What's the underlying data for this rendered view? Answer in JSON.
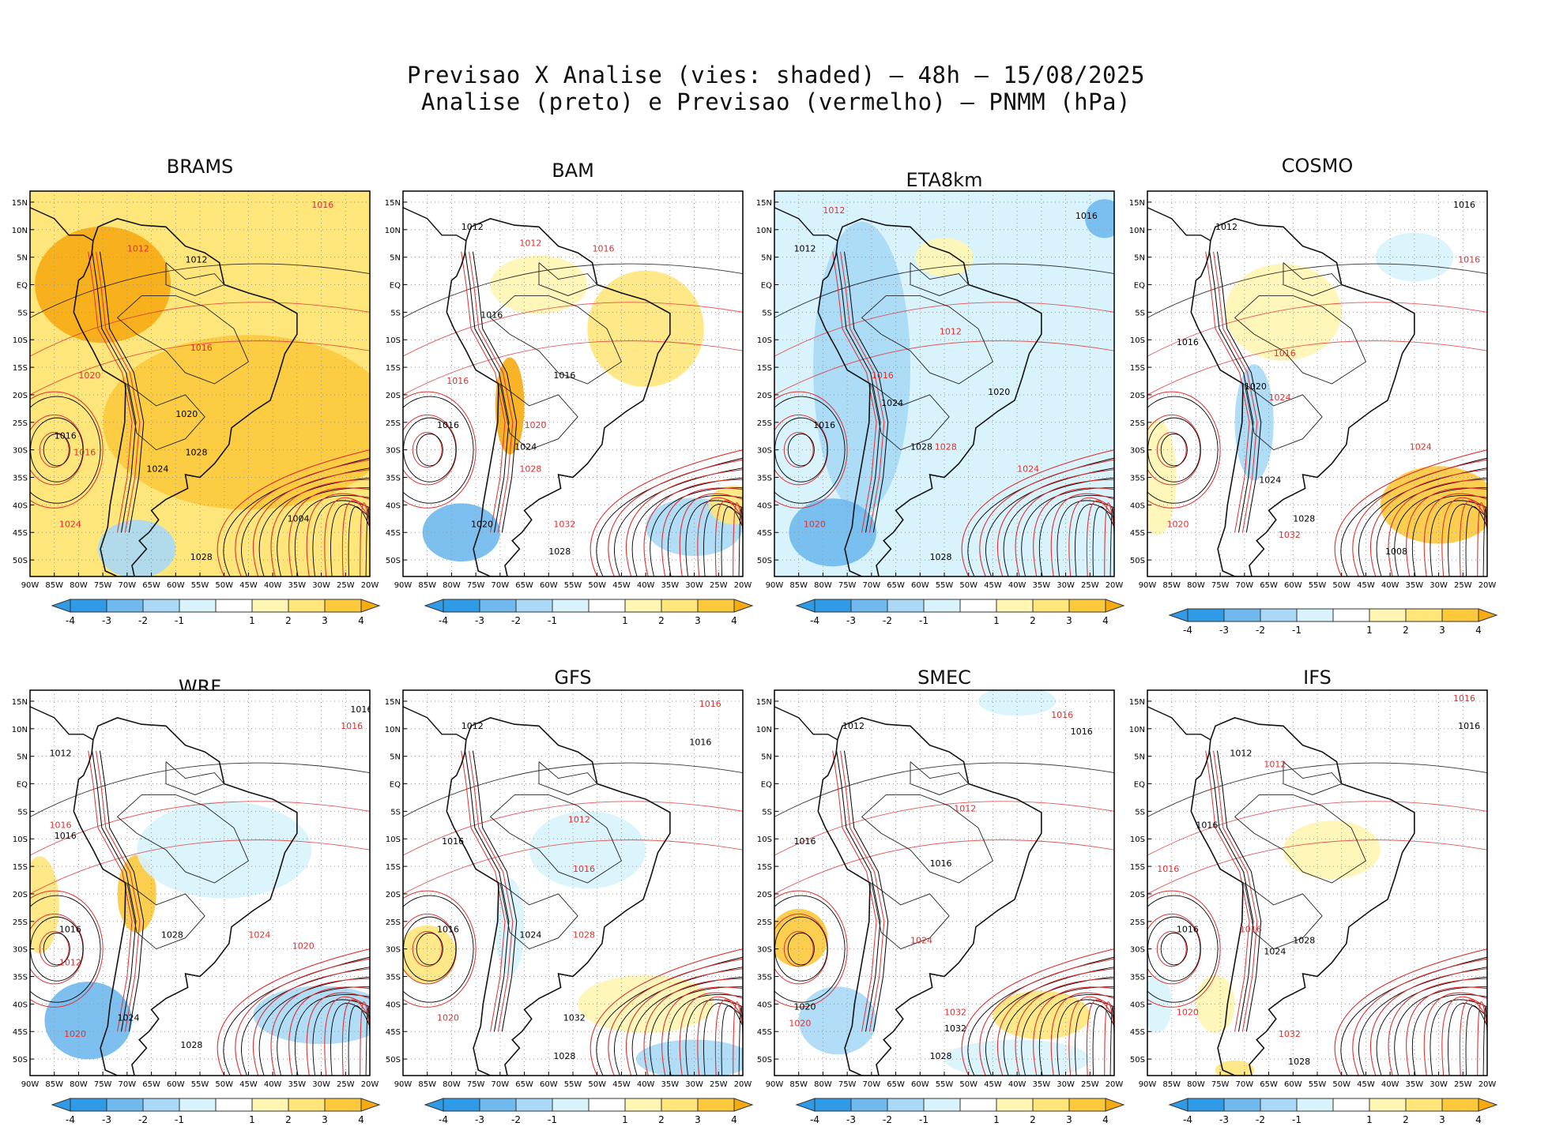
{
  "title": {
    "line1": "Previsao X Analise (vies: shaded) — 48h — 15/08/2025",
    "line2": "Analise (preto) e Previsao (vermelho) — PNMM (hPa)"
  },
  "colors": {
    "analysis_contour": "#000000",
    "forecast_contour": "#e03030",
    "bias_neg4": "#2f9ae6",
    "bias_neg3": "#6fb9ee",
    "bias_neg2": "#a9d9f6",
    "bias_neg1": "#d8f3fb",
    "bias_zero": "#ffffff",
    "bias_pos1": "#fff6b3",
    "bias_pos2": "#ffe67a",
    "bias_pos3": "#fcc93c",
    "bias_pos4": "#f7ab12"
  },
  "chart_data": {
    "type": "heatmap",
    "title": "Previsao X Analise (vies: shaded) - 48h - 15/08/2025",
    "subtitle": "Analise (preto) e Previsao (vermelho) - PNMM (hPa)",
    "xlim": [
      -90,
      -20
    ],
    "ylim": [
      -53,
      17
    ],
    "x_ticks": [
      "90W",
      "85W",
      "80W",
      "75W",
      "70W",
      "65W",
      "60W",
      "55W",
      "50W",
      "45W",
      "40W",
      "35W",
      "30W",
      "25W",
      "20W"
    ],
    "y_ticks": [
      "15N",
      "10N",
      "5N",
      "EQ",
      "5S",
      "10S",
      "15S",
      "20S",
      "25S",
      "30S",
      "35S",
      "40S",
      "45S",
      "50S"
    ],
    "colorbar": {
      "labels": [
        "-4",
        "-3",
        "-2",
        "-1",
        "1",
        "2",
        "3",
        "4"
      ],
      "bins": [
        -4,
        -3,
        -2,
        -1,
        1,
        2,
        3,
        4
      ]
    },
    "panels": [
      {
        "model": "BRAMS",
        "overall_bias": 2.0,
        "bias_regions": [
          {
            "lon": -60,
            "lat": -5,
            "rx": 32,
            "ry": 22,
            "bias": 2
          },
          {
            "lon": -45,
            "lat": -25,
            "rx": 30,
            "ry": 18,
            "bias": 3
          },
          {
            "lon": -75,
            "lat": 0,
            "rx": 14,
            "ry": 12,
            "bias": 4
          },
          {
            "lon": -68,
            "lat": -48,
            "rx": 8,
            "ry": 6,
            "bias": -2
          }
        ],
        "analysis_labels": [
          {
            "text": "1012",
            "lon": -58,
            "lat": 4
          },
          {
            "text": "1016",
            "lon": -85,
            "lat": -28
          },
          {
            "text": "1020",
            "lon": -60,
            "lat": -24
          },
          {
            "text": "1024",
            "lon": -66,
            "lat": -34
          },
          {
            "text": "1028",
            "lon": -58,
            "lat": -31
          },
          {
            "text": "1004",
            "lon": -37,
            "lat": -43
          },
          {
            "text": "1028",
            "lon": -57,
            "lat": -50
          }
        ],
        "forecast_labels": [
          {
            "text": "1016",
            "lon": -32,
            "lat": 14
          },
          {
            "text": "1012",
            "lon": -70,
            "lat": 6
          },
          {
            "text": "1016",
            "lon": -57,
            "lat": -12
          },
          {
            "text": "1020",
            "lon": -80,
            "lat": -17
          },
          {
            "text": "1016",
            "lon": -81,
            "lat": -31
          },
          {
            "text": "1024",
            "lon": -84,
            "lat": -44
          }
        ]
      },
      {
        "model": "BAM",
        "overall_bias": 0.0,
        "bias_regions": [
          {
            "lon": -40,
            "lat": -8,
            "rx": 12,
            "ry": 12,
            "bias": 2
          },
          {
            "lon": -62,
            "lat": 0,
            "rx": 10,
            "ry": 6,
            "bias": 1
          },
          {
            "lon": -68,
            "lat": -22,
            "rx": 3,
            "ry": 10,
            "bias": 4
          },
          {
            "lon": -78,
            "lat": -45,
            "rx": 8,
            "ry": 6,
            "bias": -3
          },
          {
            "lon": -30,
            "lat": -44,
            "rx": 10,
            "ry": 6,
            "bias": -2
          },
          {
            "lon": -22,
            "lat": -40,
            "rx": 5,
            "ry": 4,
            "bias": 2
          }
        ],
        "analysis_labels": [
          {
            "text": "1012",
            "lon": -78,
            "lat": 10
          },
          {
            "text": "1016",
            "lon": -74,
            "lat": -6
          },
          {
            "text": "1016",
            "lon": -59,
            "lat": -17
          },
          {
            "text": "1016",
            "lon": -83,
            "lat": -26
          },
          {
            "text": "1020",
            "lon": -76,
            "lat": -44
          },
          {
            "text": "1024",
            "lon": -67,
            "lat": -30
          },
          {
            "text": "1028",
            "lon": -60,
            "lat": -49
          }
        ],
        "forecast_labels": [
          {
            "text": "1012",
            "lon": -66,
            "lat": 7
          },
          {
            "text": "1016",
            "lon": -51,
            "lat": 6
          },
          {
            "text": "1016",
            "lon": -81,
            "lat": -18
          },
          {
            "text": "1020",
            "lon": -65,
            "lat": -26
          },
          {
            "text": "1028",
            "lon": -66,
            "lat": -34
          },
          {
            "text": "1032",
            "lon": -59,
            "lat": -44
          }
        ]
      },
      {
        "model": "ETA8km",
        "overall_bias": -1.0,
        "bias_regions": [
          {
            "lon": -72,
            "lat": -15,
            "rx": 10,
            "ry": 30,
            "bias": -2
          },
          {
            "lon": -78,
            "lat": -45,
            "rx": 9,
            "ry": 7,
            "bias": -3
          },
          {
            "lon": -40,
            "lat": -10,
            "rx": 18,
            "ry": 15,
            "bias": -1
          },
          {
            "lon": -22,
            "lat": 12,
            "rx": 4,
            "ry": 4,
            "bias": -3
          },
          {
            "lon": -55,
            "lat": 5,
            "rx": 6,
            "ry": 4,
            "bias": 1
          }
        ],
        "analysis_labels": [
          {
            "text": "1012",
            "lon": -86,
            "lat": 6
          },
          {
            "text": "1016",
            "lon": -28,
            "lat": 12
          },
          {
            "text": "1016",
            "lon": -82,
            "lat": -26
          },
          {
            "text": "1020",
            "lon": -46,
            "lat": -20
          },
          {
            "text": "1024",
            "lon": -68,
            "lat": -22
          },
          {
            "text": "1028",
            "lon": -62,
            "lat": -30
          },
          {
            "text": "1028",
            "lon": -58,
            "lat": -50
          }
        ],
        "forecast_labels": [
          {
            "text": "1012",
            "lon": -80,
            "lat": 13
          },
          {
            "text": "1012",
            "lon": -56,
            "lat": -9
          },
          {
            "text": "1016",
            "lon": -70,
            "lat": -17
          },
          {
            "text": "1020",
            "lon": -84,
            "lat": -44
          },
          {
            "text": "1024",
            "lon": -40,
            "lat": -34
          },
          {
            "text": "1028",
            "lon": -57,
            "lat": -30
          }
        ]
      },
      {
        "model": "COSMO",
        "overall_bias": 0.0,
        "bias_regions": [
          {
            "lon": -30,
            "lat": -40,
            "rx": 12,
            "ry": 8,
            "bias": 3
          },
          {
            "lon": -62,
            "lat": -5,
            "rx": 12,
            "ry": 10,
            "bias": 1
          },
          {
            "lon": -68,
            "lat": -25,
            "rx": 4,
            "ry": 12,
            "bias": -2
          },
          {
            "lon": -88,
            "lat": -35,
            "rx": 4,
            "ry": 12,
            "bias": 1
          },
          {
            "lon": -35,
            "lat": 5,
            "rx": 8,
            "ry": 5,
            "bias": -1
          }
        ],
        "analysis_labels": [
          {
            "text": "1012",
            "lon": -76,
            "lat": 10
          },
          {
            "text": "1016",
            "lon": -27,
            "lat": 14
          },
          {
            "text": "1016",
            "lon": -84,
            "lat": -11
          },
          {
            "text": "1020",
            "lon": -70,
            "lat": -19
          },
          {
            "text": "1024",
            "lon": -67,
            "lat": -36
          },
          {
            "text": "1028",
            "lon": -60,
            "lat": -43
          },
          {
            "text": "1008",
            "lon": -41,
            "lat": -49
          }
        ],
        "forecast_labels": [
          {
            "text": "1016",
            "lon": -26,
            "lat": 4
          },
          {
            "text": "1016",
            "lon": -64,
            "lat": -13
          },
          {
            "text": "1020",
            "lon": -86,
            "lat": -44
          },
          {
            "text": "1024",
            "lon": -65,
            "lat": -21
          },
          {
            "text": "1024",
            "lon": -36,
            "lat": -30
          },
          {
            "text": "1032",
            "lon": -63,
            "lat": -46
          }
        ]
      },
      {
        "model": "WRF",
        "overall_bias": 0.0,
        "bias_regions": [
          {
            "lon": -78,
            "lat": -43,
            "rx": 9,
            "ry": 8,
            "bias": -3
          },
          {
            "lon": -68,
            "lat": -20,
            "rx": 4,
            "ry": 8,
            "bias": 3
          },
          {
            "lon": -50,
            "lat": -12,
            "rx": 18,
            "ry": 10,
            "bias": -1
          },
          {
            "lon": -30,
            "lat": -42,
            "rx": 14,
            "ry": 6,
            "bias": -2
          },
          {
            "lon": -88,
            "lat": -22,
            "rx": 4,
            "ry": 10,
            "bias": 2
          }
        ],
        "analysis_labels": [
          {
            "text": "1016",
            "lon": -24,
            "lat": 13
          },
          {
            "text": "1012",
            "lon": -86,
            "lat": 5
          },
          {
            "text": "1016",
            "lon": -85,
            "lat": -10
          },
          {
            "text": "1016",
            "lon": -84,
            "lat": -27
          },
          {
            "text": "1028",
            "lon": -63,
            "lat": -28
          },
          {
            "text": "1024",
            "lon": -72,
            "lat": -43
          },
          {
            "text": "1028",
            "lon": -59,
            "lat": -48
          }
        ],
        "forecast_labels": [
          {
            "text": "1016",
            "lon": -26,
            "lat": 10
          },
          {
            "text": "1016",
            "lon": -86,
            "lat": -8
          },
          {
            "text": "1012",
            "lon": -84,
            "lat": -33
          },
          {
            "text": "1024",
            "lon": -45,
            "lat": -28
          },
          {
            "text": "1020",
            "lon": -36,
            "lat": -30
          },
          {
            "text": "1020",
            "lon": -83,
            "lat": -46
          }
        ]
      },
      {
        "model": "GFS",
        "overall_bias": 0.0,
        "bias_regions": [
          {
            "lon": -52,
            "lat": -12,
            "rx": 12,
            "ry": 8,
            "bias": -1
          },
          {
            "lon": -40,
            "lat": -40,
            "rx": 14,
            "ry": 6,
            "bias": 1
          },
          {
            "lon": -30,
            "lat": -50,
            "rx": 12,
            "ry": 4,
            "bias": -2
          },
          {
            "lon": -85,
            "lat": -31,
            "rx": 6,
            "ry": 6,
            "bias": 2
          },
          {
            "lon": -68,
            "lat": -26,
            "rx": 3,
            "ry": 10,
            "bias": -1
          }
        ],
        "analysis_labels": [
          {
            "text": "1012",
            "lon": -78,
            "lat": 10
          },
          {
            "text": "1016",
            "lon": -31,
            "lat": 7
          },
          {
            "text": "1016",
            "lon": -82,
            "lat": -11
          },
          {
            "text": "1016",
            "lon": -83,
            "lat": -27
          },
          {
            "text": "1024",
            "lon": -66,
            "lat": -28
          },
          {
            "text": "1032",
            "lon": -57,
            "lat": -43
          },
          {
            "text": "1028",
            "lon": -59,
            "lat": -50
          }
        ],
        "forecast_labels": [
          {
            "text": "1016",
            "lon": -29,
            "lat": 14
          },
          {
            "text": "1012",
            "lon": -56,
            "lat": -7
          },
          {
            "text": "1016",
            "lon": -55,
            "lat": -16
          },
          {
            "text": "1028",
            "lon": -55,
            "lat": -28
          },
          {
            "text": "1020",
            "lon": -83,
            "lat": -43
          }
        ]
      },
      {
        "model": "SMEC",
        "overall_bias": 0.0,
        "bias_regions": [
          {
            "lon": -85,
            "lat": -28,
            "rx": 6,
            "ry": 6,
            "bias": 3
          },
          {
            "lon": -77,
            "lat": -43,
            "rx": 8,
            "ry": 7,
            "bias": -2
          },
          {
            "lon": -35,
            "lat": -42,
            "rx": 10,
            "ry": 5,
            "bias": 2
          },
          {
            "lon": -40,
            "lat": -50,
            "rx": 15,
            "ry": 4,
            "bias": -1
          },
          {
            "lon": -40,
            "lat": 15,
            "rx": 8,
            "ry": 3,
            "bias": -1
          }
        ],
        "analysis_labels": [
          {
            "text": "1012",
            "lon": -76,
            "lat": 10
          },
          {
            "text": "1016",
            "lon": -29,
            "lat": 9
          },
          {
            "text": "1016",
            "lon": -86,
            "lat": -11
          },
          {
            "text": "1016",
            "lon": -58,
            "lat": -15
          },
          {
            "text": "1020",
            "lon": -86,
            "lat": -41
          },
          {
            "text": "1032",
            "lon": -55,
            "lat": -45
          },
          {
            "text": "1028",
            "lon": -58,
            "lat": -50
          }
        ],
        "forecast_labels": [
          {
            "text": "1016",
            "lon": -33,
            "lat": 12
          },
          {
            "text": "1012",
            "lon": -53,
            "lat": -5
          },
          {
            "text": "1024",
            "lon": -62,
            "lat": -29
          },
          {
            "text": "1032",
            "lon": -55,
            "lat": -42
          },
          {
            "text": "1020",
            "lon": -87,
            "lat": -44
          }
        ]
      },
      {
        "model": "IFS",
        "overall_bias": 0.0,
        "bias_regions": [
          {
            "lon": -76,
            "lat": -40,
            "rx": 4,
            "ry": 6,
            "bias": 1
          },
          {
            "lon": -52,
            "lat": -12,
            "rx": 10,
            "ry": 6,
            "bias": 1
          },
          {
            "lon": -88,
            "lat": -40,
            "rx": 3,
            "ry": 6,
            "bias": -1
          },
          {
            "lon": -72,
            "lat": -52,
            "rx": 4,
            "ry": 2,
            "bias": 2
          }
        ],
        "analysis_labels": [
          {
            "text": "1016",
            "lon": -26,
            "lat": 10
          },
          {
            "text": "1012",
            "lon": -73,
            "lat": 5
          },
          {
            "text": "1016",
            "lon": -80,
            "lat": -8
          },
          {
            "text": "1016",
            "lon": -84,
            "lat": -27
          },
          {
            "text": "1024",
            "lon": -66,
            "lat": -31
          },
          {
            "text": "1028",
            "lon": -60,
            "lat": -29
          },
          {
            "text": "1028",
            "lon": -61,
            "lat": -51
          }
        ],
        "forecast_labels": [
          {
            "text": "1016",
            "lon": -27,
            "lat": 15
          },
          {
            "text": "1012",
            "lon": -66,
            "lat": 3
          },
          {
            "text": "1016",
            "lon": -88,
            "lat": -16
          },
          {
            "text": "1016",
            "lon": -71,
            "lat": -27
          },
          {
            "text": "1020",
            "lon": -84,
            "lat": -42
          },
          {
            "text": "1032",
            "lon": -63,
            "lat": -46
          }
        ]
      }
    ]
  }
}
